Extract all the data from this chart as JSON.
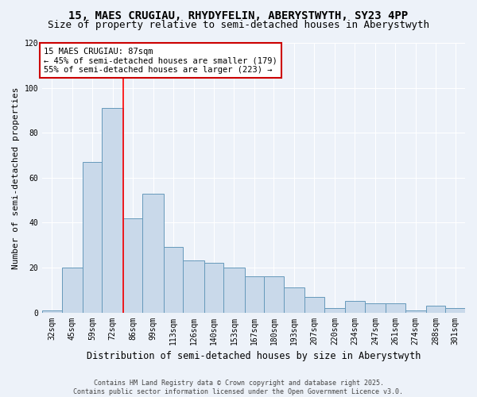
{
  "title1": "15, MAES CRUGIAU, RHYDYFELIN, ABERYSTWYTH, SY23 4PP",
  "title2": "Size of property relative to semi-detached houses in Aberystwyth",
  "xlabel": "Distribution of semi-detached houses by size in Aberystwyth",
  "ylabel": "Number of semi-detached properties",
  "categories": [
    "32sqm",
    "45sqm",
    "59sqm",
    "72sqm",
    "86sqm",
    "99sqm",
    "113sqm",
    "126sqm",
    "140sqm",
    "153sqm",
    "167sqm",
    "180sqm",
    "193sqm",
    "207sqm",
    "220sqm",
    "234sqm",
    "247sqm",
    "261sqm",
    "274sqm",
    "288sqm",
    "301sqm"
  ],
  "bin_edges": [
    32,
    45,
    59,
    72,
    86,
    99,
    113,
    126,
    140,
    153,
    167,
    180,
    193,
    207,
    220,
    234,
    247,
    261,
    274,
    288,
    301,
    314
  ],
  "heights": [
    1,
    20,
    67,
    91,
    42,
    53,
    29,
    23,
    22,
    20,
    16,
    16,
    11,
    7,
    2,
    5,
    4,
    4,
    1,
    3,
    2
  ],
  "bar_color": "#c9d9ea",
  "bar_edge_color": "#6699bb",
  "red_line_x": 86,
  "annotation_text": "15 MAES CRUGIAU: 87sqm\n← 45% of semi-detached houses are smaller (179)\n55% of semi-detached houses are larger (223) →",
  "ylim": [
    0,
    120
  ],
  "yticks": [
    0,
    20,
    40,
    60,
    80,
    100,
    120
  ],
  "footer": "Contains HM Land Registry data © Crown copyright and database right 2025.\nContains public sector information licensed under the Open Government Licence v3.0.",
  "bg_color": "#edf2f9",
  "plot_bg_color": "#edf2f9",
  "annotation_box_color": "#ffffff",
  "annotation_box_edge": "#cc0000",
  "grid_color": "#ffffff",
  "title_fontsize": 10,
  "subtitle_fontsize": 9,
  "tick_fontsize": 7,
  "ylabel_fontsize": 8,
  "xlabel_fontsize": 8.5,
  "footer_fontsize": 6
}
